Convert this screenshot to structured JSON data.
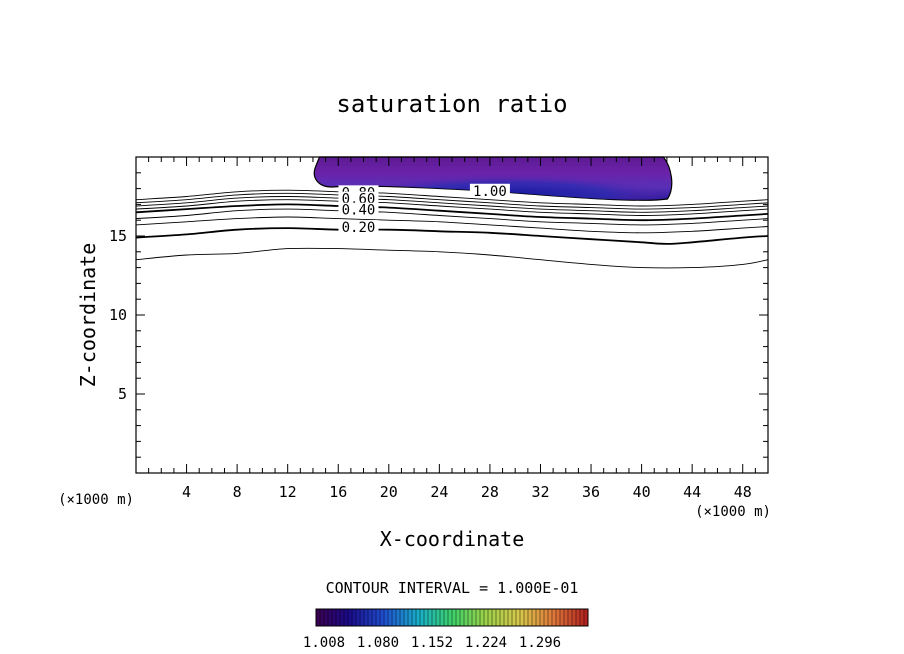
{
  "chart_data": {
    "type": "contour",
    "title": "saturation ratio",
    "xlabel": "X-coordinate",
    "ylabel": "Z-coordinate",
    "x_unit": "(×1000 m)",
    "z_unit": "(×1000 m)",
    "xlim": [
      0,
      50
    ],
    "ylim": [
      0,
      20
    ],
    "x_ticks": [
      4,
      8,
      12,
      16,
      20,
      24,
      28,
      32,
      36,
      40,
      44,
      48
    ],
    "y_ticks": [
      5,
      10,
      15
    ],
    "grid": false,
    "contour_interval_text": "CONTOUR INTERVAL = 1.000E-01",
    "contour_labels": [
      {
        "text": "0.80",
        "x": 17.6,
        "z": 17.7
      },
      {
        "text": "0.60",
        "x": 17.6,
        "z": 17.3
      },
      {
        "text": "0.40",
        "x": 17.6,
        "z": 16.6
      },
      {
        "text": "0.20",
        "x": 17.6,
        "z": 15.5
      },
      {
        "text": "1.00",
        "x": 28.0,
        "z": 17.8
      }
    ],
    "colorbar": {
      "labels": [
        "1.008",
        "1.080",
        "1.152",
        "1.224",
        "1.296"
      ],
      "colors": [
        "#3c0050",
        "#1a0a8a",
        "#1f4fd0",
        "#19b0c8",
        "#3cd26a",
        "#9ad24a",
        "#d8c84a",
        "#e07a3a",
        "#d2282a",
        "#b01e1e"
      ]
    },
    "contours": [
      {
        "level": 0.9,
        "bold": false,
        "points": [
          [
            0,
            17.3
          ],
          [
            4,
            17.5
          ],
          [
            8,
            17.8
          ],
          [
            12,
            17.9
          ],
          [
            16,
            17.8
          ],
          [
            20,
            17.7
          ],
          [
            24,
            17.5
          ],
          [
            28,
            17.3
          ],
          [
            32,
            17.1
          ],
          [
            36,
            17.0
          ],
          [
            40,
            16.9
          ],
          [
            44,
            17.0
          ],
          [
            48,
            17.2
          ],
          [
            50,
            17.3
          ]
        ]
      },
      {
        "level": 0.8,
        "bold": false,
        "points": [
          [
            0,
            17.1
          ],
          [
            4,
            17.3
          ],
          [
            8,
            17.6
          ],
          [
            12,
            17.7
          ],
          [
            16,
            17.6
          ],
          [
            20,
            17.5
          ],
          [
            24,
            17.3
          ],
          [
            28,
            17.1
          ],
          [
            32,
            16.9
          ],
          [
            36,
            16.8
          ],
          [
            40,
            16.7
          ],
          [
            44,
            16.8
          ],
          [
            48,
            17.0
          ],
          [
            50,
            17.1
          ]
        ]
      },
      {
        "level": 0.7,
        "bold": false,
        "points": [
          [
            0,
            16.9
          ],
          [
            4,
            17.1
          ],
          [
            8,
            17.4
          ],
          [
            12,
            17.5
          ],
          [
            16,
            17.4
          ],
          [
            20,
            17.3
          ],
          [
            24,
            17.1
          ],
          [
            28,
            16.9
          ],
          [
            32,
            16.7
          ],
          [
            36,
            16.6
          ],
          [
            40,
            16.5
          ],
          [
            44,
            16.6
          ],
          [
            48,
            16.8
          ],
          [
            50,
            16.9
          ]
        ]
      },
      {
        "level": 0.6,
        "bold": false,
        "points": [
          [
            0,
            16.7
          ],
          [
            4,
            16.9
          ],
          [
            8,
            17.2
          ],
          [
            12,
            17.3
          ],
          [
            16,
            17.2
          ],
          [
            20,
            17.1
          ],
          [
            24,
            16.9
          ],
          [
            28,
            16.7
          ],
          [
            32,
            16.5
          ],
          [
            36,
            16.4
          ],
          [
            40,
            16.3
          ],
          [
            44,
            16.4
          ],
          [
            48,
            16.6
          ],
          [
            50,
            16.7
          ]
        ]
      },
      {
        "level": 0.5,
        "bold": true,
        "points": [
          [
            0,
            16.5
          ],
          [
            4,
            16.7
          ],
          [
            8,
            16.9
          ],
          [
            12,
            17.0
          ],
          [
            16,
            16.9
          ],
          [
            20,
            16.8
          ],
          [
            24,
            16.6
          ],
          [
            28,
            16.4
          ],
          [
            32,
            16.2
          ],
          [
            36,
            16.1
          ],
          [
            40,
            16.0
          ],
          [
            44,
            16.1
          ],
          [
            48,
            16.3
          ],
          [
            50,
            16.4
          ]
        ]
      },
      {
        "level": 0.4,
        "bold": false,
        "points": [
          [
            0,
            16.1
          ],
          [
            4,
            16.3
          ],
          [
            8,
            16.6
          ],
          [
            12,
            16.7
          ],
          [
            16,
            16.6
          ],
          [
            20,
            16.5
          ],
          [
            24,
            16.3
          ],
          [
            28,
            16.1
          ],
          [
            32,
            15.9
          ],
          [
            36,
            15.8
          ],
          [
            40,
            15.7
          ],
          [
            44,
            15.8
          ],
          [
            48,
            16.0
          ],
          [
            50,
            16.1
          ]
        ]
      },
      {
        "level": 0.3,
        "bold": false,
        "points": [
          [
            0,
            15.7
          ],
          [
            4,
            15.9
          ],
          [
            8,
            16.1
          ],
          [
            12,
            16.2
          ],
          [
            16,
            16.1
          ],
          [
            20,
            16.0
          ],
          [
            24,
            15.9
          ],
          [
            28,
            15.7
          ],
          [
            32,
            15.5
          ],
          [
            36,
            15.3
          ],
          [
            40,
            15.2
          ],
          [
            44,
            15.3
          ],
          [
            48,
            15.5
          ],
          [
            50,
            15.6
          ]
        ]
      },
      {
        "level": 0.2,
        "bold": true,
        "points": [
          [
            0,
            14.9
          ],
          [
            4,
            15.1
          ],
          [
            8,
            15.4
          ],
          [
            12,
            15.5
          ],
          [
            16,
            15.4
          ],
          [
            20,
            15.4
          ],
          [
            24,
            15.3
          ],
          [
            28,
            15.2
          ],
          [
            32,
            15.0
          ],
          [
            36,
            14.8
          ],
          [
            40,
            14.6
          ],
          [
            42,
            14.5
          ],
          [
            44,
            14.6
          ],
          [
            48,
            14.9
          ],
          [
            50,
            15.0
          ]
        ]
      },
      {
        "level": 0.1,
        "bold": false,
        "points": [
          [
            0,
            13.5
          ],
          [
            4,
            13.8
          ],
          [
            8,
            13.9
          ],
          [
            12,
            14.2
          ],
          [
            16,
            14.2
          ],
          [
            20,
            14.1
          ],
          [
            24,
            14.0
          ],
          [
            28,
            13.8
          ],
          [
            32,
            13.5
          ],
          [
            36,
            13.2
          ],
          [
            40,
            13.0
          ],
          [
            44,
            13.0
          ],
          [
            48,
            13.2
          ],
          [
            50,
            13.5
          ]
        ]
      }
    ],
    "filled_region": {
      "level": 1.0,
      "x_start": 14.2,
      "x_end": 42.2,
      "z_top": 20
    }
  }
}
